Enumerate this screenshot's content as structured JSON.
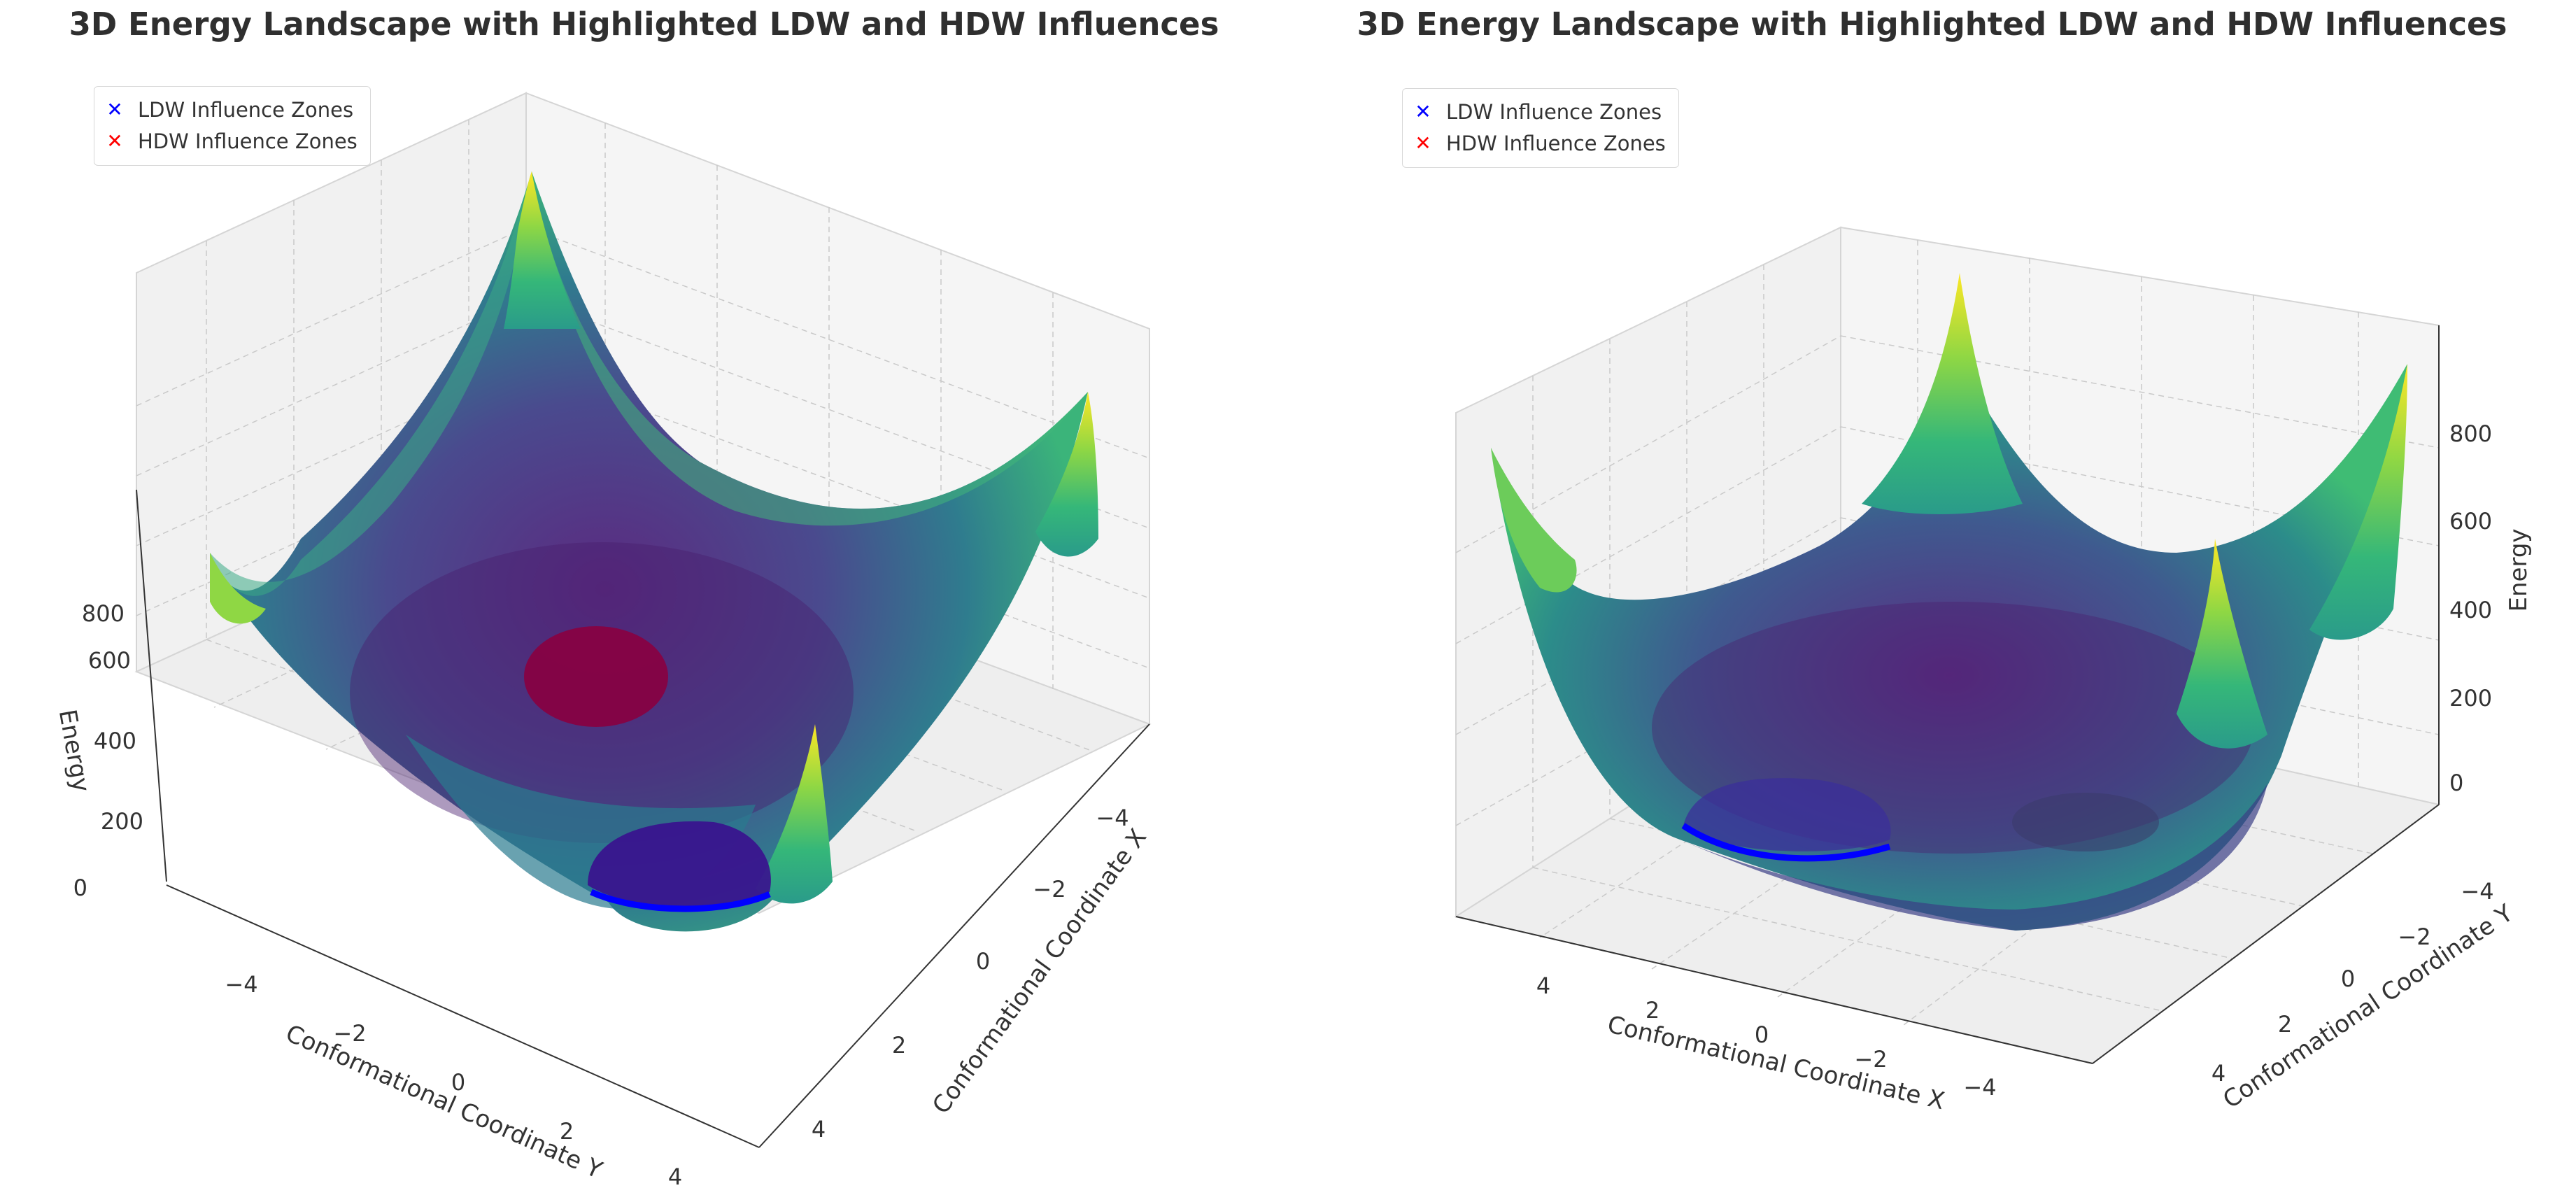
{
  "chart_data": [
    {
      "type": "surface3d",
      "title": "3D Energy Landscape with Highlighted LDW and HDW Influences",
      "xlabel": "Conformational Coordinate X",
      "ylabel": "Conformational Coordinate Y",
      "zlabel": "Energy",
      "xlim": [
        -5,
        5
      ],
      "ylim": [
        -5,
        5
      ],
      "zlim": [
        0,
        1000
      ],
      "x_ticks": [
        "4",
        "2",
        "0",
        "−2",
        "−4"
      ],
      "y_ticks": [
        "−4",
        "−2",
        "0",
        "2",
        "4"
      ],
      "z_ticks": [
        "0",
        "200",
        "400",
        "600",
        "800"
      ],
      "colormap": "viridis",
      "view": "left",
      "legend": [
        {
          "label": "LDW Influence Zones",
          "marker": "x",
          "color": "#0000ff"
        },
        {
          "label": "HDW Influence Zones",
          "marker": "x",
          "color": "#ff0000"
        }
      ],
      "surface": {
        "max_energy": 1000,
        "min_energy": 0,
        "corner_peaks": 4
      }
    },
    {
      "type": "surface3d",
      "title": "3D Energy Landscape with Highlighted LDW and HDW Influences",
      "xlabel": "Conformational Coordinate X",
      "ylabel": "Conformational Coordinate Y",
      "zlabel": "Energy",
      "xlim": [
        -5,
        5
      ],
      "ylim": [
        -5,
        5
      ],
      "zlim": [
        0,
        1000
      ],
      "x_ticks": [
        "4",
        "2",
        "0",
        "−2",
        "−4"
      ],
      "y_ticks": [
        "−4",
        "−2",
        "0",
        "2",
        "4"
      ],
      "z_ticks": [
        "0",
        "200",
        "400",
        "600",
        "800"
      ],
      "colormap": "viridis",
      "view": "right",
      "legend": [
        {
          "label": "LDW Influence Zones",
          "marker": "x",
          "color": "#0000ff"
        },
        {
          "label": "HDW Influence Zones",
          "marker": "x",
          "color": "#ff0000"
        }
      ],
      "surface": {
        "max_energy": 1000,
        "min_energy": 0,
        "corner_peaks": 4
      }
    }
  ]
}
